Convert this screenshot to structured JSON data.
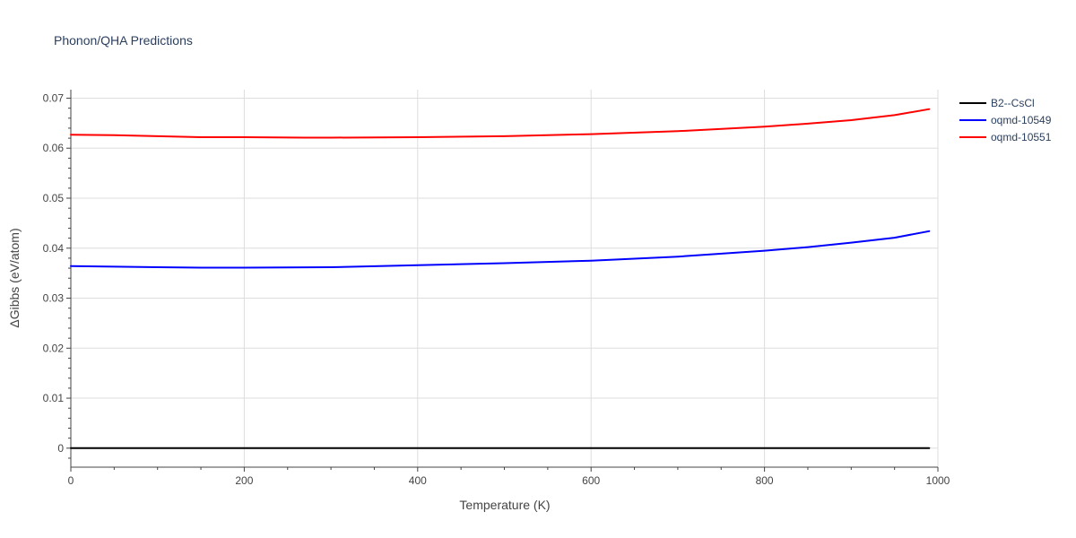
{
  "chart_data": {
    "type": "line",
    "title": "Phonon/QHA Predictions",
    "xlabel": "Temperature (K)",
    "ylabel": "ΔGibbs (eV/atom)",
    "xlim": [
      0,
      1000
    ],
    "ylim": [
      -0.0038,
      0.0717
    ],
    "x_ticks": [
      0,
      200,
      400,
      600,
      800,
      1000
    ],
    "y_ticks": [
      0,
      0.01,
      0.02,
      0.03,
      0.04,
      0.05,
      0.06,
      0.07
    ],
    "grid": true,
    "legend_position": "top-right",
    "series": [
      {
        "name": "B2--CsCl",
        "color": "#000000",
        "x": [
          0,
          100,
          200,
          300,
          400,
          500,
          600,
          700,
          800,
          900,
          990
        ],
        "y": [
          0,
          0,
          0,
          0,
          0,
          0,
          0,
          0,
          0,
          0,
          0
        ]
      },
      {
        "name": "oqmd-10549",
        "color": "#0000ff",
        "x": [
          0,
          50,
          100,
          150,
          200,
          300,
          400,
          500,
          600,
          700,
          800,
          850,
          900,
          950,
          990
        ],
        "y": [
          0.0364,
          0.0363,
          0.0362,
          0.0361,
          0.0361,
          0.0362,
          0.0366,
          0.037,
          0.0375,
          0.0383,
          0.0395,
          0.0402,
          0.0411,
          0.0421,
          0.0434
        ]
      },
      {
        "name": "oqmd-10551",
        "color": "#ff0000",
        "x": [
          0,
          50,
          100,
          150,
          200,
          270,
          300,
          400,
          500,
          600,
          700,
          800,
          850,
          900,
          950,
          990
        ],
        "y": [
          0.0627,
          0.0626,
          0.0624,
          0.0622,
          0.0622,
          0.0621,
          0.0621,
          0.0622,
          0.0624,
          0.0628,
          0.0634,
          0.0643,
          0.0649,
          0.0656,
          0.0666,
          0.0678
        ]
      }
    ]
  }
}
